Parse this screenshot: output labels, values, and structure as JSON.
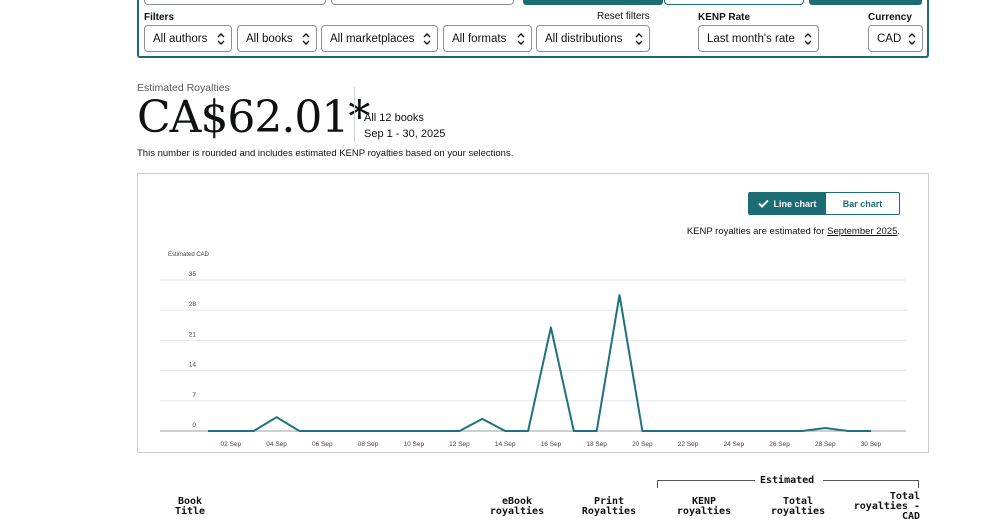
{
  "filters": {
    "heading": "Filters",
    "reset_label": "Reset filters",
    "authors": "All authors",
    "books": "All books",
    "marketplaces": "All marketplaces",
    "formats": "All formats",
    "distributions": "All distributions",
    "kenp_heading": "KENP Rate",
    "kenp_value": "Last month's rate",
    "currency_heading": "Currency",
    "currency_value": "CAD"
  },
  "summary": {
    "eyebrow": "Estimated Royalties",
    "amount": "CA$62.01*",
    "books": "All 12 books",
    "date_range": "Sep 1 - 30, 2025",
    "note": "This number is rounded and includes estimated KENP royalties based on your selections."
  },
  "chart_controls": {
    "line_label": "Line chart",
    "bar_label": "Bar chart",
    "kenp_note_prefix": "KENP royalties are estimated for ",
    "kenp_note_link": "September 2025",
    "kenp_note_suffix": "."
  },
  "chart_data": {
    "type": "line",
    "ylabel": "Estimated CAD",
    "ylim": [
      0,
      35
    ],
    "yticks": [
      0,
      7,
      14,
      21,
      28,
      35
    ],
    "x": [
      "01 Sep",
      "02 Sep",
      "03 Sep",
      "04 Sep",
      "05 Sep",
      "06 Sep",
      "07 Sep",
      "08 Sep",
      "09 Sep",
      "10 Sep",
      "11 Sep",
      "12 Sep",
      "13 Sep",
      "14 Sep",
      "15 Sep",
      "16 Sep",
      "17 Sep",
      "18 Sep",
      "19 Sep",
      "20 Sep",
      "21 Sep",
      "22 Sep",
      "23 Sep",
      "24 Sep",
      "25 Sep",
      "26 Sep",
      "27 Sep",
      "28 Sep",
      "29 Sep",
      "30 Sep"
    ],
    "xticks": [
      "02 Sep",
      "04 Sep",
      "06 Sep",
      "08 Sep",
      "10 Sep",
      "12 Sep",
      "14 Sep",
      "16 Sep",
      "18 Sep",
      "20 Sep",
      "22 Sep",
      "24 Sep",
      "26 Sep",
      "28 Sep",
      "30 Sep"
    ],
    "values": [
      0,
      0,
      0,
      3.2,
      0,
      0,
      0,
      0,
      0,
      0,
      0,
      0,
      2.8,
      0,
      0,
      24,
      0,
      0,
      31.5,
      0,
      0,
      0,
      0,
      0,
      0,
      0,
      0,
      0.7,
      0,
      0
    ],
    "color": "#1f7181",
    "grid": true
  },
  "table_header": {
    "estimated": "Estimated",
    "col_title": [
      "Book",
      "Title"
    ],
    "col_ebook": [
      "eBook",
      "royalties"
    ],
    "col_print": [
      "Print",
      "Royalties"
    ],
    "col_kenp": [
      "KENP",
      "royalties"
    ],
    "col_total": [
      "Total",
      "royalties"
    ],
    "col_total_cad": [
      "Total",
      "royalties -",
      "CAD"
    ]
  }
}
